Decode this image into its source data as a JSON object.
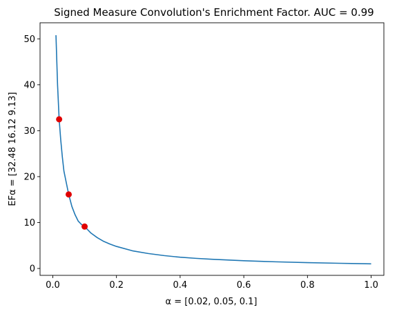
{
  "chart_data": {
    "type": "line",
    "title": "Signed Measure Convolution's Enrichment Factor. AUC = 0.99",
    "xlabel": "α = [0.02, 0.05, 0.1]",
    "ylabel": "EFα = [32.48 16.12  9.13]",
    "xlim": [
      -0.04,
      1.04
    ],
    "ylim": [
      -1.5,
      53.5
    ],
    "xticks": [
      0.0,
      0.2,
      0.4,
      0.6,
      0.8,
      1.0
    ],
    "xtick_labels": [
      "0.0",
      "0.2",
      "0.4",
      "0.6",
      "0.8",
      "1.0"
    ],
    "yticks": [
      0,
      10,
      20,
      30,
      40,
      50
    ],
    "ytick_labels": [
      "0",
      "10",
      "20",
      "30",
      "40",
      "50"
    ],
    "grid": false,
    "series": [
      {
        "kind": "line",
        "color": "#1f77b4",
        "x": [
          0.01,
          0.015,
          0.02,
          0.025,
          0.03,
          0.035,
          0.04,
          0.05,
          0.06,
          0.07,
          0.08,
          0.09,
          0.1,
          0.12,
          0.14,
          0.16,
          0.18,
          0.2,
          0.25,
          0.3,
          0.35,
          0.4,
          0.45,
          0.5,
          0.6,
          0.7,
          0.8,
          0.9,
          1.0
        ],
        "y": [
          50.8,
          40.0,
          32.48,
          28.0,
          24.3,
          21.2,
          19.5,
          16.12,
          13.5,
          11.7,
          10.3,
          9.6,
          9.13,
          7.7,
          6.7,
          5.9,
          5.3,
          4.8,
          3.85,
          3.25,
          2.8,
          2.45,
          2.2,
          2.0,
          1.68,
          1.45,
          1.27,
          1.13,
          1.0
        ]
      },
      {
        "kind": "scatter",
        "color": "#e00000",
        "x": [
          0.02,
          0.05,
          0.1
        ],
        "y": [
          32.48,
          16.12,
          9.13
        ]
      }
    ]
  }
}
